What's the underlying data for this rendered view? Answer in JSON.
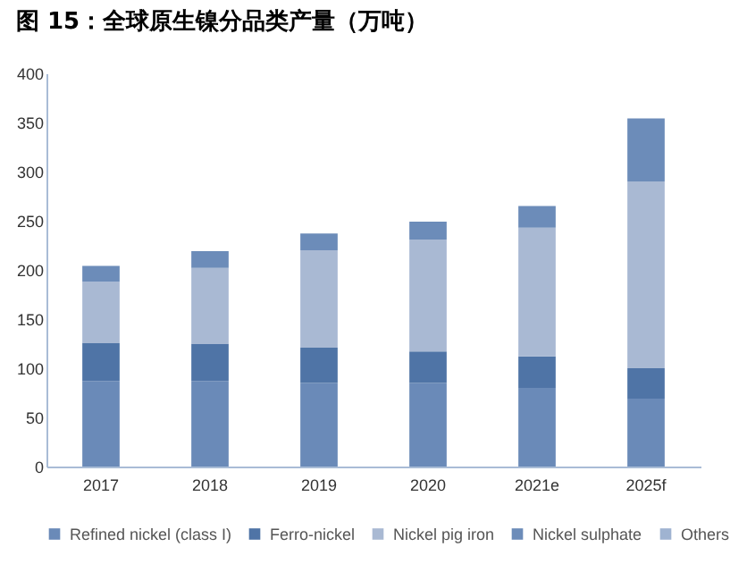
{
  "chart_data": {
    "type": "bar",
    "title": "图 15：全球原生镍分品类产量（万吨）",
    "categories": [
      "2017",
      "2018",
      "2019",
      "2020",
      "2021e",
      "2025f"
    ],
    "stacked": true,
    "series": [
      {
        "name": "Refined nickel (class I)",
        "color": "#6a8ab8",
        "values": [
          87,
          87,
          85,
          85,
          80,
          69
        ]
      },
      {
        "name": "Ferro-nickel",
        "color": "#4f74a6",
        "values": [
          39,
          38,
          36,
          32,
          32,
          31
        ]
      },
      {
        "name": "Nickel pig iron",
        "color": "#a9b9d3",
        "values": [
          62,
          77,
          99,
          114,
          131,
          190
        ]
      },
      {
        "name": "Nickel sulphate",
        "color": "#6c8cb9",
        "values": [
          16,
          17,
          17,
          18,
          22,
          64
        ]
      },
      {
        "name": "Others",
        "color": "#9fb3d1",
        "values": [
          0,
          0,
          0,
          0,
          0,
          0
        ]
      }
    ],
    "ylim": [
      0,
      400
    ],
    "yticks": [
      0,
      50,
      100,
      150,
      200,
      250,
      300,
      350,
      400
    ],
    "grid": false,
    "legend": "bottom"
  }
}
